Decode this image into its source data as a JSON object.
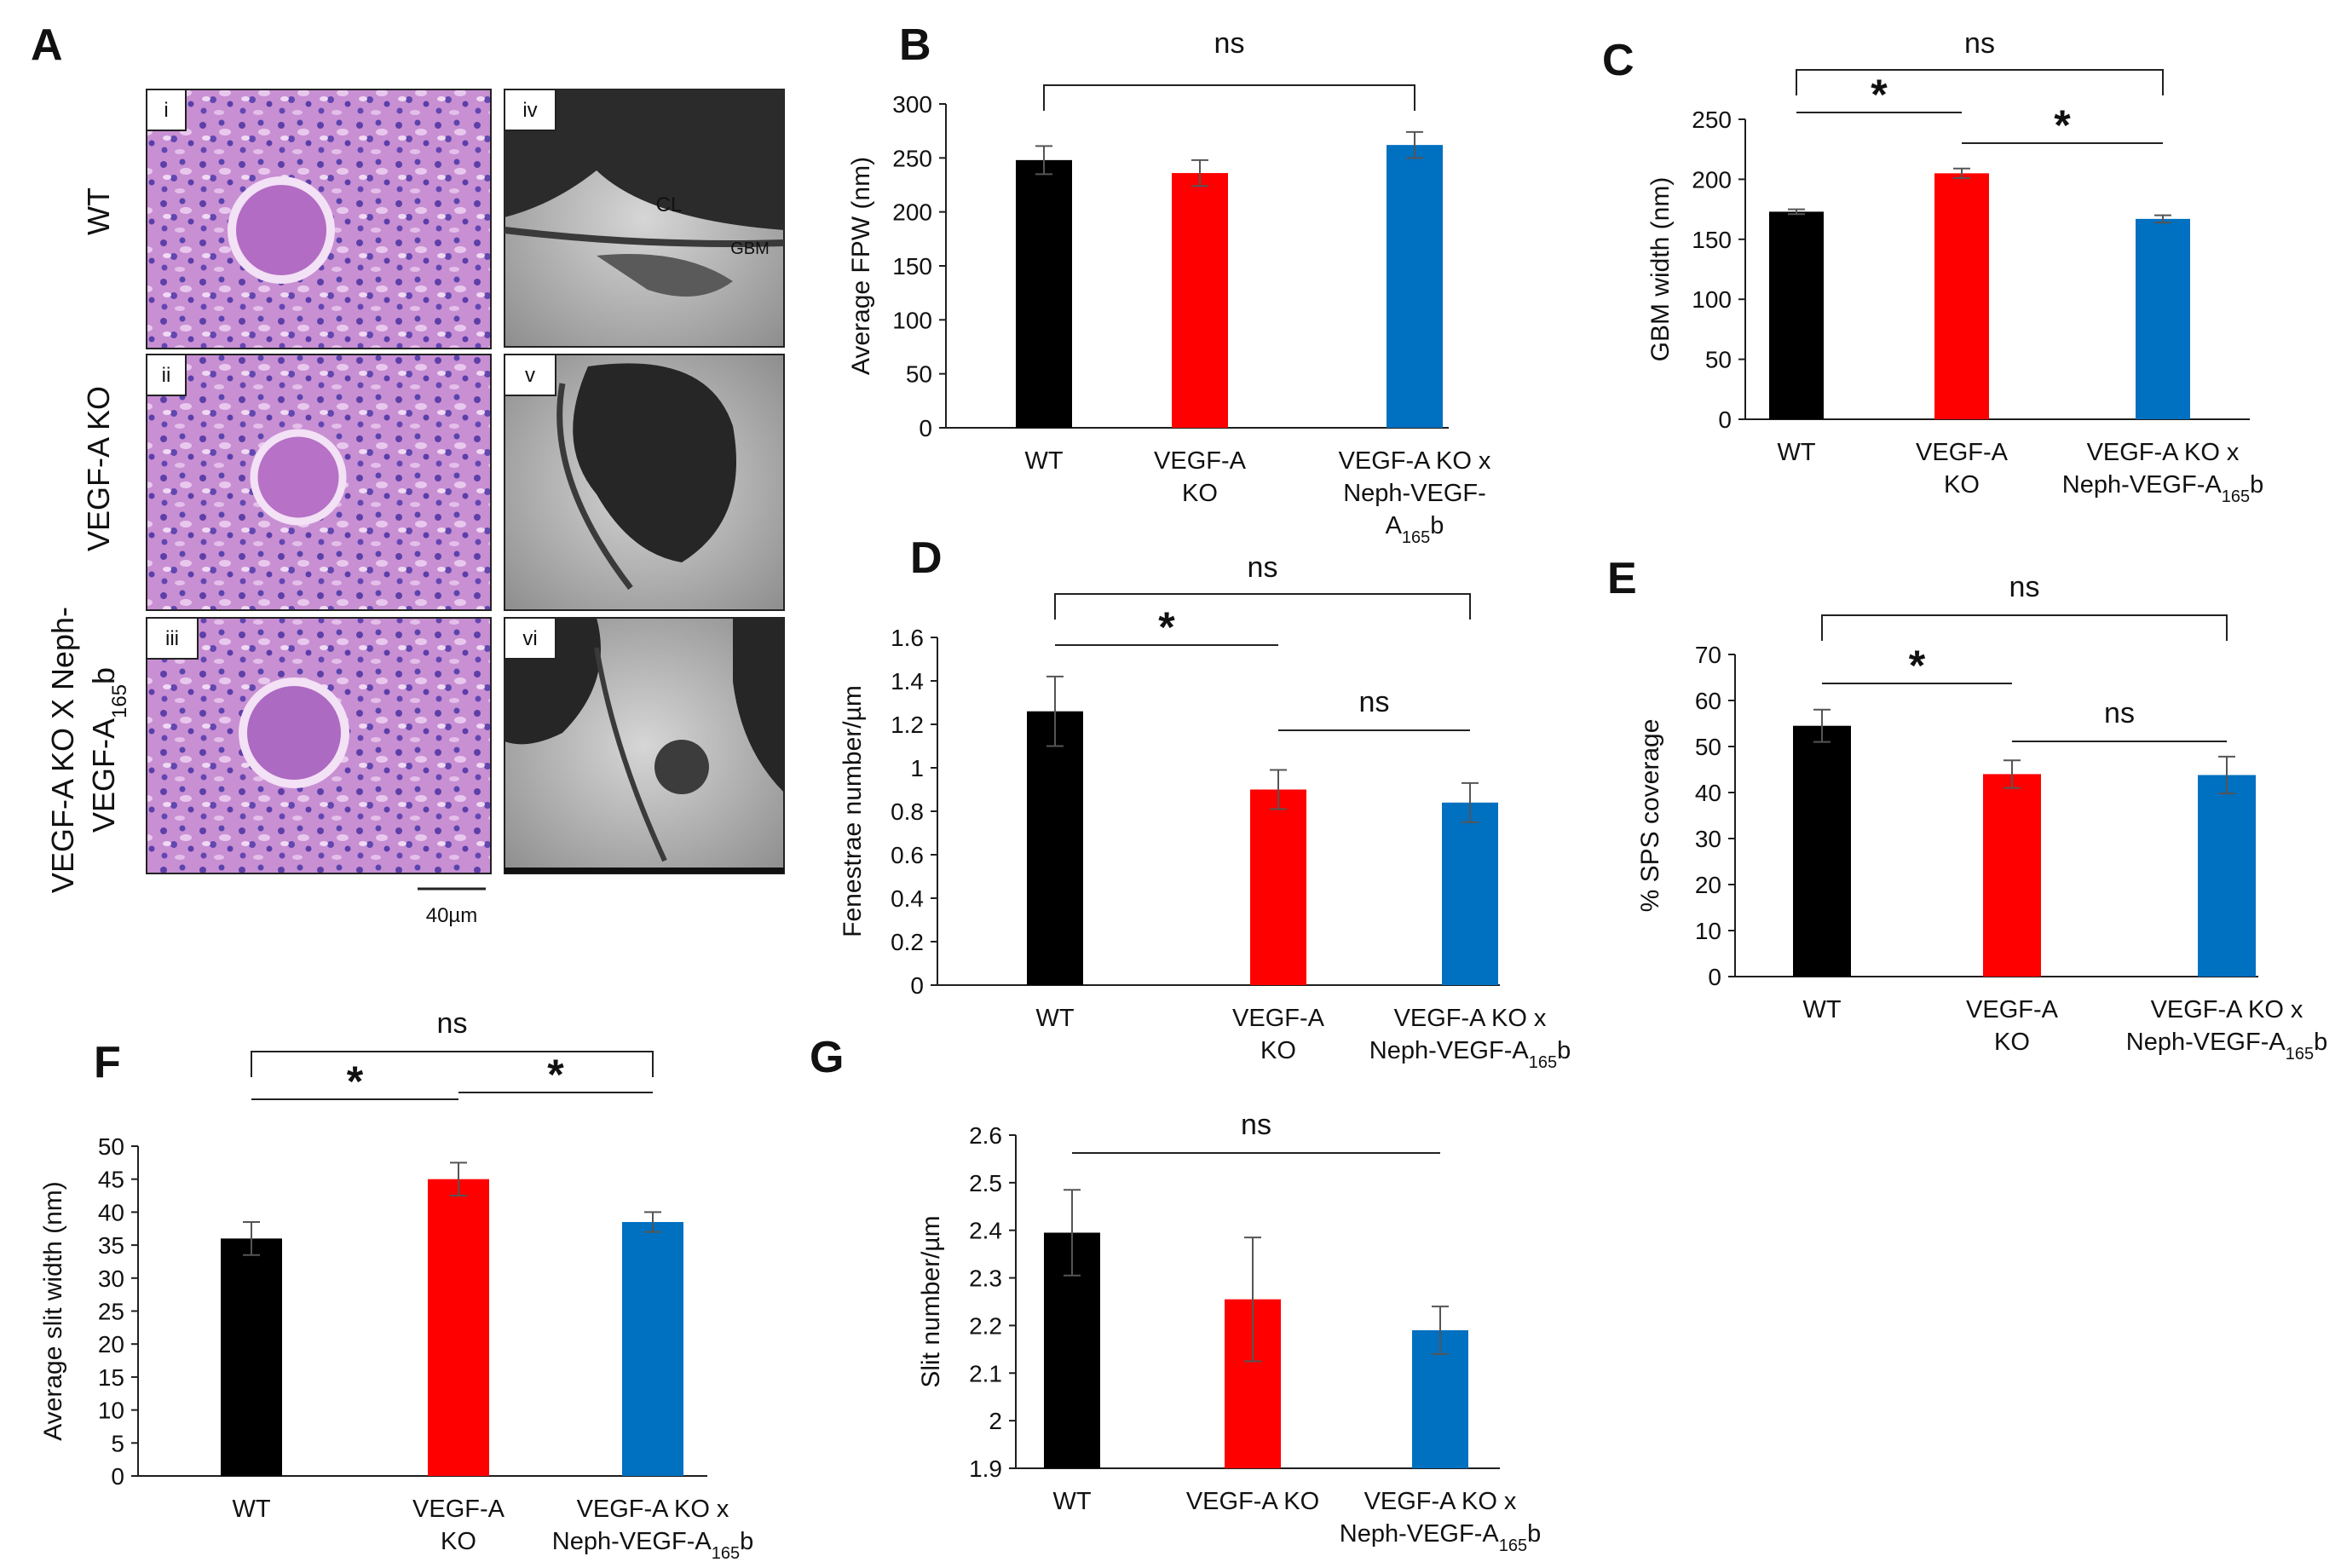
{
  "colors": {
    "wt": "#000000",
    "ko": "#ff0000",
    "rescue": "#0070c0",
    "axis": "#1f1f1f"
  },
  "panel_a": {
    "letter": "A",
    "row_labels": [
      "WT",
      "VEGF-A KO",
      "VEGF-A KO X Neph-VEGF-A165b"
    ],
    "row_label_main": "VEGF-A KO X Neph-",
    "row_label_sub_main": "VEGF-A",
    "row_label_sub": "165",
    "row_label_tail": "b",
    "image_labels": [
      "i",
      "ii",
      "iii",
      "iv",
      "v",
      "vi"
    ],
    "annotations": {
      "cl": "CL",
      "gbm": "GBM"
    },
    "scale_bar": "40µm"
  },
  "chart_data": [
    {
      "id": "B",
      "type": "bar",
      "ylabel": "Average FPW (nm)",
      "ylim": [
        0,
        300
      ],
      "yticks": [
        0,
        50,
        100,
        150,
        200,
        250,
        300
      ],
      "categories": [
        "WT",
        "VEGF-A KO",
        "VEGF-A KO x Neph-VEGF-A165b"
      ],
      "cat_lines": [
        [
          "WT"
        ],
        [
          "VEGF-A",
          "KO"
        ],
        [
          "VEGF-A KO x",
          "Neph-VEGF-",
          "A165b"
        ]
      ],
      "values": [
        248,
        236,
        262
      ],
      "errors": [
        13,
        12,
        12
      ],
      "sig": [
        {
          "text": "ns",
          "kind": "bracket",
          "from": 0,
          "to": 2
        }
      ]
    },
    {
      "id": "C",
      "type": "bar",
      "ylabel": "GBM width (nm)",
      "ylim": [
        0,
        250
      ],
      "yticks": [
        0,
        50,
        100,
        150,
        200,
        250
      ],
      "categories": [
        "WT",
        "VEGF-A KO",
        "VEGF-A KO x Neph-VEGF-A165b"
      ],
      "cat_lines": [
        [
          "WT"
        ],
        [
          "VEGF-A",
          "KO"
        ],
        [
          "VEGF-A KO x",
          "Neph-VEGF-A165b"
        ]
      ],
      "values": [
        173,
        205,
        167
      ],
      "errors": [
        2,
        4,
        3
      ],
      "sig": [
        {
          "text": "ns",
          "kind": "bracket",
          "from": 0,
          "to": 2
        },
        {
          "text": "*",
          "kind": "line",
          "from": 0,
          "to": 1
        },
        {
          "text": "*",
          "kind": "line",
          "from": 1,
          "to": 2
        }
      ]
    },
    {
      "id": "D",
      "type": "bar",
      "ylabel": "Fenestrae number/µm",
      "ylim": [
        0,
        1.6
      ],
      "yticks": [
        0,
        0.2,
        0.4,
        0.6,
        0.8,
        1,
        1.2,
        1.4,
        1.6
      ],
      "categories": [
        "WT",
        "VEGF-A KO",
        "VEGF-A KO x Neph-VEGF-A165b"
      ],
      "cat_lines": [
        [
          "WT"
        ],
        [
          "VEGF-A",
          "KO"
        ],
        [
          "VEGF-A KO x",
          "Neph-VEGF-A165b"
        ]
      ],
      "values": [
        1.26,
        0.9,
        0.84
      ],
      "errors": [
        0.16,
        0.09,
        0.09
      ],
      "sig": [
        {
          "text": "ns",
          "kind": "bracket",
          "from": 0,
          "to": 2
        },
        {
          "text": "*",
          "kind": "line",
          "from": 0,
          "to": 1
        },
        {
          "text": "ns",
          "kind": "line",
          "from": 1,
          "to": 2
        }
      ]
    },
    {
      "id": "E",
      "type": "bar",
      "ylabel": "% SPS coverage",
      "ylim": [
        0,
        70
      ],
      "yticks": [
        0,
        10,
        20,
        30,
        40,
        50,
        60,
        70
      ],
      "categories": [
        "WT",
        "VEGF-A KO",
        "VEGF-A KO x Neph-VEGF-A165b"
      ],
      "cat_lines": [
        [
          "WT"
        ],
        [
          "VEGF-A",
          "KO"
        ],
        [
          "VEGF-A KO x",
          "Neph-VEGF-A165b"
        ]
      ],
      "values": [
        54.5,
        44,
        43.8
      ],
      "errors": [
        3.5,
        3,
        4
      ],
      "sig": [
        {
          "text": "ns",
          "kind": "bracket",
          "from": 0,
          "to": 2
        },
        {
          "text": "*",
          "kind": "line",
          "from": 0,
          "to": 1
        },
        {
          "text": "ns",
          "kind": "line",
          "from": 1,
          "to": 2
        }
      ]
    },
    {
      "id": "F",
      "type": "bar",
      "ylabel": "Average slit width (nm)",
      "ylim": [
        0,
        50
      ],
      "yticks": [
        0,
        5,
        10,
        15,
        20,
        25,
        30,
        35,
        40,
        45,
        50
      ],
      "categories": [
        "WT",
        "VEGF-A KO",
        "VEGF-A KO x Neph-VEGF-A165b"
      ],
      "cat_lines": [
        [
          "WT"
        ],
        [
          "VEGF-A",
          "KO"
        ],
        [
          "VEGF-A KO x",
          "Neph-VEGF-A165b"
        ]
      ],
      "values": [
        36,
        45,
        38.5
      ],
      "errors": [
        2.5,
        2.5,
        1.5
      ],
      "sig": [
        {
          "text": "ns",
          "kind": "bracket",
          "from": 0,
          "to": 2
        },
        {
          "text": "*",
          "kind": "line",
          "from": 0,
          "to": 1
        },
        {
          "text": "*",
          "kind": "line",
          "from": 1,
          "to": 2
        }
      ]
    },
    {
      "id": "G",
      "type": "bar",
      "ylabel": "Slit number/µm",
      "ylim": [
        1.9,
        2.6
      ],
      "yticks": [
        1.9,
        2,
        2.1,
        2.2,
        2.3,
        2.4,
        2.5,
        2.6
      ],
      "categories": [
        "WT",
        "VEGF-A KO",
        "VEGF-A KO x Neph-VEGF-A165b"
      ],
      "cat_lines": [
        [
          "WT"
        ],
        [
          "VEGF-A KO"
        ],
        [
          "VEGF-A KO x",
          "Neph-VEGF-A165b"
        ]
      ],
      "values": [
        2.395,
        2.255,
        2.19
      ],
      "errors": [
        0.09,
        0.13,
        0.05
      ],
      "sig": [
        {
          "text": "ns",
          "kind": "line",
          "from": 0,
          "to": 2
        }
      ]
    }
  ]
}
